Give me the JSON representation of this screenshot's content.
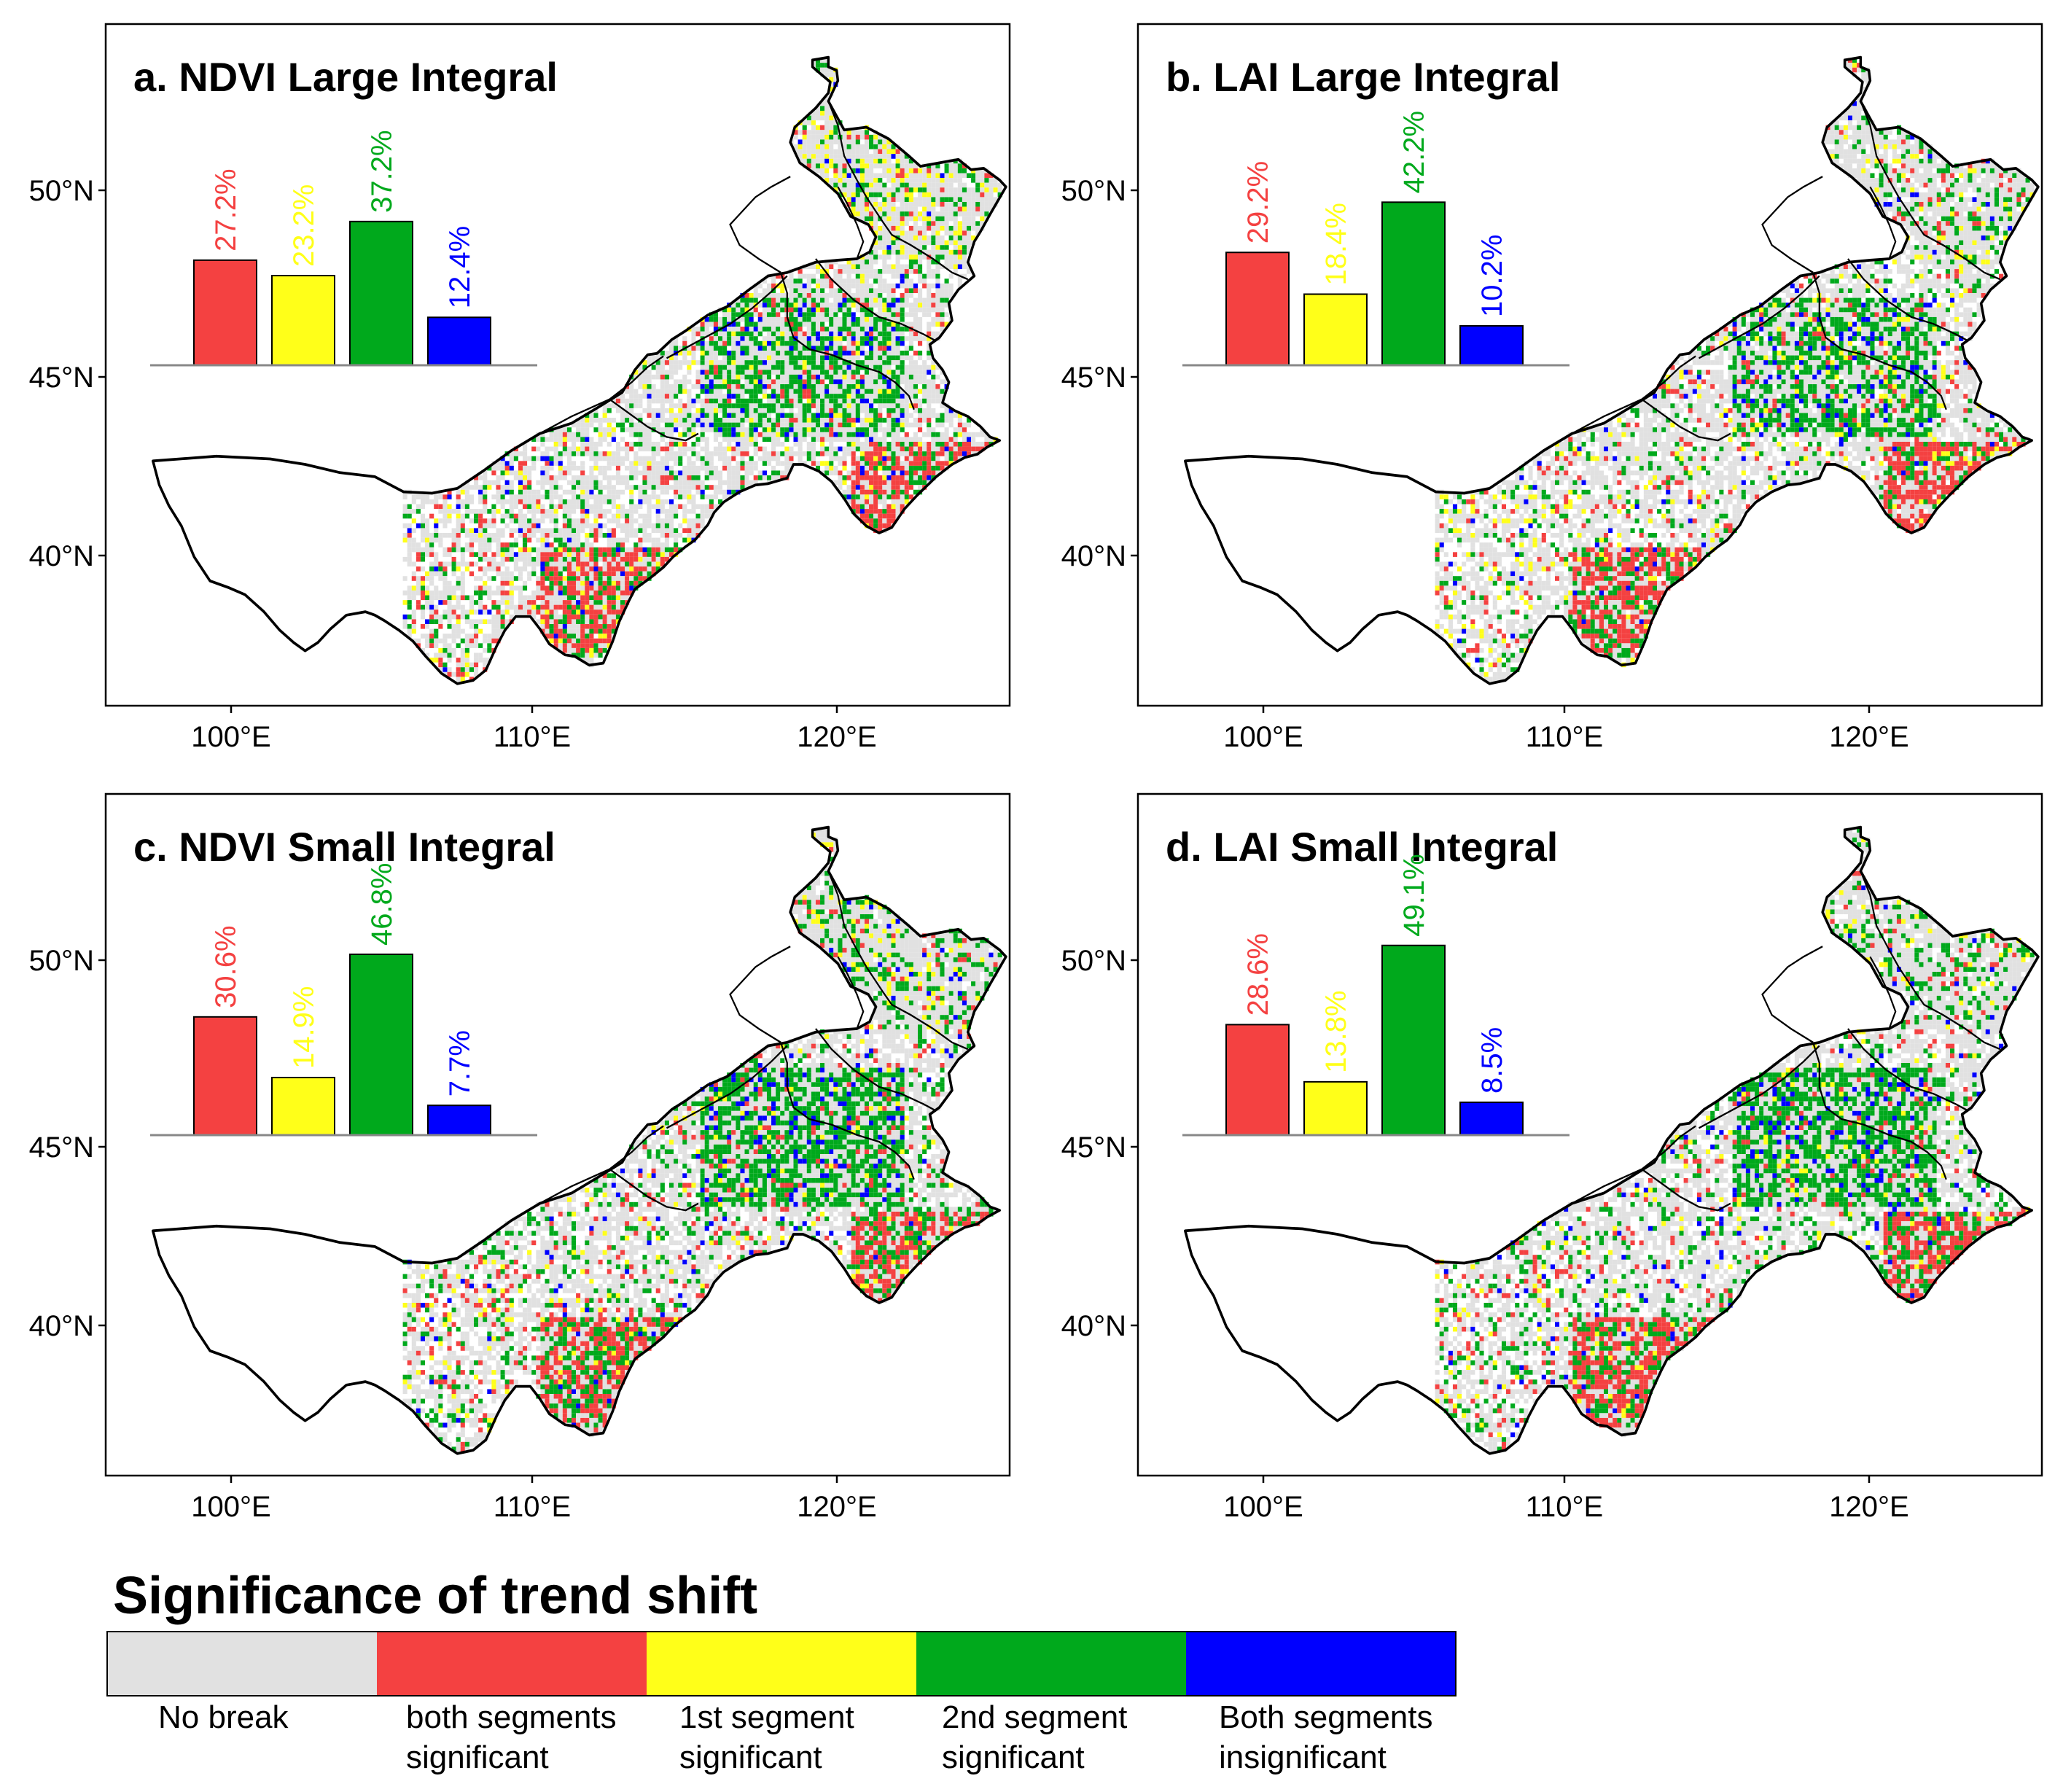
{
  "figure_title": "Significance of trend shift",
  "colors": {
    "no_break": "#e1e1e1",
    "both_significant": "#f44141",
    "first_significant": "#ffff19",
    "second_significant": "#00a91c",
    "both_insignificant": "#0000ff"
  },
  "legend": {
    "title": "Significance of trend shift",
    "items": [
      {
        "key": "no_break",
        "line1": "No break",
        "line2": ""
      },
      {
        "key": "both_significant",
        "line1": "both segments",
        "line2": "significant"
      },
      {
        "key": "first_significant",
        "line1": "1st segment",
        "line2": "significant"
      },
      {
        "key": "second_significant",
        "line1": "2nd segment",
        "line2": "significant"
      },
      {
        "key": "both_insignificant",
        "line1": "Both segments",
        "line2": "insignificant"
      }
    ]
  },
  "axes": {
    "lon_ticks": [
      "100°E",
      "110°E",
      "120°E"
    ],
    "lat_ticks": [
      "50°N",
      "45°N",
      "40°N"
    ]
  },
  "chart_data": [
    {
      "type": "bar",
      "panel": "a",
      "title": "a. NDVI Large Integral",
      "categories": [
        "both segments significant",
        "1st segment significant",
        "2nd segment significant",
        "Both segments insignificant"
      ],
      "values": [
        27.2,
        23.2,
        37.2,
        12.4
      ],
      "labels": [
        "27.2%",
        "23.2%",
        "37.2%",
        "12.4%"
      ]
    },
    {
      "type": "bar",
      "panel": "b",
      "title": "b. LAI Large Integral",
      "categories": [
        "both segments significant",
        "1st segment significant",
        "2nd segment significant",
        "Both segments insignificant"
      ],
      "values": [
        29.2,
        18.4,
        42.2,
        10.2
      ],
      "labels": [
        "29.2%",
        "18.4%",
        "42.2%",
        "10.2%"
      ]
    },
    {
      "type": "bar",
      "panel": "c",
      "title": "c. NDVI Small Integral",
      "categories": [
        "both segments significant",
        "1st segment significant",
        "2nd segment significant",
        "Both segments insignificant"
      ],
      "values": [
        30.6,
        14.9,
        46.8,
        7.7
      ],
      "labels": [
        "30.6%",
        "14.9%",
        "46.8%",
        "7.7%"
      ]
    },
    {
      "type": "bar",
      "panel": "d",
      "title": "d. LAI Small Integral",
      "categories": [
        "both segments significant",
        "1st segment significant",
        "2nd segment significant",
        "Both segments insignificant"
      ],
      "values": [
        28.6,
        13.8,
        49.1,
        8.5
      ],
      "labels": [
        "28.6%",
        "13.8%",
        "49.1%",
        "8.5%"
      ]
    }
  ]
}
